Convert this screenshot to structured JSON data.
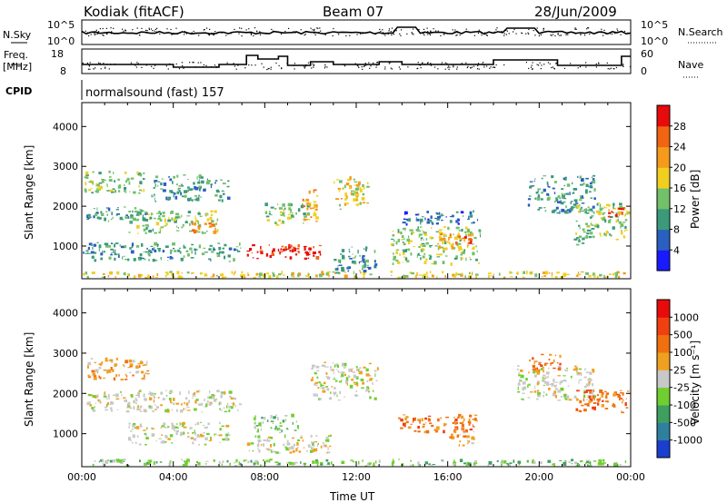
{
  "header": {
    "station": "Kodiak (fitACF)",
    "beam": "Beam 07",
    "date": "28/Jun/2009"
  },
  "top_panels": {
    "nsky_label": "N.Sky",
    "nsearch_label": "N.Search",
    "nsky_ticks": [
      "10^5",
      "10^0"
    ],
    "nsearch_ticks": [
      "10^5",
      "10^0"
    ],
    "freq_label_1": "Freq.",
    "freq_label_2": "[MHz]",
    "freq_ticks": [
      "18",
      "8"
    ],
    "nave_label": "Nave",
    "nave_ticks": [
      "60",
      "0"
    ],
    "cpid_label": "CPID",
    "cpid_value": "normalsound (fast) 157"
  },
  "chart_data": [
    {
      "type": "heatmap",
      "name": "power",
      "ylabel": "Slant Range [km]",
      "ylim": [
        180,
        4600
      ],
      "yticks": [
        "1000",
        "2000",
        "3000",
        "4000"
      ],
      "colorbar": {
        "label": "Power [dB]",
        "ticks": [
          "4",
          "8",
          "12",
          "16",
          "20",
          "24",
          "28"
        ],
        "colors": [
          "#1a1aff",
          "#2a5fbf",
          "#3a9a7a",
          "#72c06a",
          "#f0cf20",
          "#f59a1a",
          "#f06412",
          "#e80b0b"
        ]
      },
      "regions": [
        {
          "t0": 0.0,
          "t1": 24.0,
          "r0": 180,
          "r1": 380,
          "level": 4
        },
        {
          "t0": 0.0,
          "t1": 7.0,
          "r0": 600,
          "r1": 1100,
          "level": 2
        },
        {
          "t0": 0.2,
          "t1": 3.0,
          "r0": 1600,
          "r1": 2000,
          "level": 2
        },
        {
          "t0": 0.1,
          "t1": 2.8,
          "r0": 2300,
          "r1": 2900,
          "level": 3
        },
        {
          "t0": 2.0,
          "t1": 6.0,
          "r0": 1300,
          "r1": 1900,
          "level": 3
        },
        {
          "t0": 3.0,
          "t1": 6.5,
          "r0": 2100,
          "r1": 2800,
          "level": 2
        },
        {
          "t0": 4.8,
          "t1": 6.0,
          "r0": 1300,
          "r1": 1600,
          "level": 6
        },
        {
          "t0": 7.2,
          "t1": 10.6,
          "r0": 650,
          "r1": 1050,
          "level": 7
        },
        {
          "t0": 8.0,
          "t1": 10.0,
          "r0": 1500,
          "r1": 2100,
          "level": 3
        },
        {
          "t0": 9.6,
          "t1": 10.4,
          "r0": 1600,
          "r1": 2500,
          "level": 5
        },
        {
          "t0": 11.0,
          "t1": 12.6,
          "r0": 1900,
          "r1": 2800,
          "level": 4
        },
        {
          "t0": 11.0,
          "t1": 13.0,
          "r0": 300,
          "r1": 1000,
          "level": 2
        },
        {
          "t0": 13.5,
          "t1": 17.5,
          "r0": 500,
          "r1": 1500,
          "level": 3
        },
        {
          "t0": 15.5,
          "t1": 17.2,
          "r0": 900,
          "r1": 1400,
          "level": 5
        },
        {
          "t0": 16.6,
          "t1": 17.1,
          "r0": 950,
          "r1": 1250,
          "level": 7
        },
        {
          "t0": 14.0,
          "t1": 17.5,
          "r0": 1500,
          "r1": 1900,
          "level": 1
        },
        {
          "t0": 19.5,
          "t1": 22.5,
          "r0": 1800,
          "r1": 2800,
          "level": 2
        },
        {
          "t0": 21.5,
          "t1": 24.0,
          "r0": 1000,
          "r1": 2100,
          "level": 3
        },
        {
          "t0": 23.0,
          "t1": 24.0,
          "r0": 1700,
          "r1": 2000,
          "level": 6
        }
      ]
    },
    {
      "type": "heatmap",
      "name": "velocity",
      "ylabel": "Slant Range [km]",
      "xlabel": "Time UT",
      "xlim": [
        0,
        24
      ],
      "xticks": [
        "00:00",
        "04:00",
        "08:00",
        "12:00",
        "16:00",
        "20:00",
        "00:00"
      ],
      "ylim": [
        180,
        4600
      ],
      "yticks": [
        "1000",
        "2000",
        "3000",
        "4000"
      ],
      "colorbar": {
        "label": "Velocity [m s⁻¹]",
        "ticks": [
          "1000",
          "500",
          "100",
          "25",
          "-25",
          "-100",
          "-500",
          "-1000"
        ],
        "colors": [
          "#1a3fcf",
          "#2f7f9f",
          "#3f9f5f",
          "#70cf30",
          "#c8c8c8",
          "#f0a020",
          "#f07010",
          "#f04010",
          "#e80b0b"
        ]
      },
      "regions": [
        {
          "t0": 0.0,
          "t1": 24.0,
          "r0": 180,
          "r1": 380,
          "level": 3
        },
        {
          "t0": 0.2,
          "t1": 3.0,
          "r0": 2300,
          "r1": 2900,
          "level": 5
        },
        {
          "t0": 0.2,
          "t1": 7.0,
          "r0": 1500,
          "r1": 2100,
          "level": 4
        },
        {
          "t0": 2.0,
          "t1": 6.5,
          "r0": 700,
          "r1": 1300,
          "level": 4
        },
        {
          "t0": 7.5,
          "t1": 9.5,
          "r0": 1000,
          "r1": 1500,
          "level": 3
        },
        {
          "t0": 7.2,
          "t1": 11.0,
          "r0": 500,
          "r1": 1000,
          "level": 4
        },
        {
          "t0": 10.0,
          "t1": 13.0,
          "r0": 1800,
          "r1": 2800,
          "level": 4
        },
        {
          "t0": 13.8,
          "t1": 17.4,
          "r0": 1000,
          "r1": 1500,
          "level": 6
        },
        {
          "t0": 16.0,
          "t1": 17.2,
          "r0": 650,
          "r1": 1100,
          "level": 5
        },
        {
          "t0": 19.0,
          "t1": 22.5,
          "r0": 1800,
          "r1": 2700,
          "level": 4
        },
        {
          "t0": 21.5,
          "t1": 24.0,
          "r0": 1500,
          "r1": 2100,
          "level": 6
        },
        {
          "t0": 19.5,
          "t1": 21.0,
          "r0": 2500,
          "r1": 3000,
          "level": 6
        }
      ]
    }
  ]
}
